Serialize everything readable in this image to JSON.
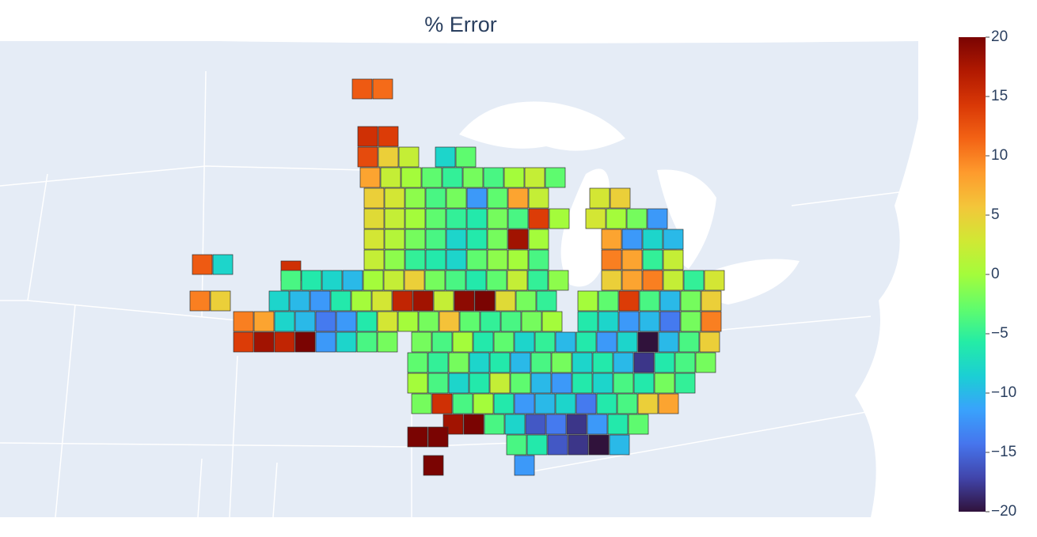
{
  "chart_data": {
    "type": "choropleth",
    "title": "% Error",
    "colorscale": [
      "#30123b",
      "#4145ab",
      "#4675ed",
      "#39a2fc",
      "#1bcfd4",
      "#24eca6",
      "#61fc6c",
      "#a4fc3b",
      "#d1e834",
      "#f3c63a",
      "#fe9b2d",
      "#f36315",
      "#d93806",
      "#b11901",
      "#7a0402"
    ],
    "zlim": [
      -20,
      20
    ],
    "zticks": [
      20,
      15,
      10,
      5,
      0,
      {
        "value": -5,
        "label": "−5"
      },
      {
        "value": -10,
        "label": "−10"
      },
      {
        "value": -15,
        "label": "−15"
      },
      {
        "value": -20,
        "label": "−20"
      }
    ],
    "values": [
      12,
      11,
      15,
      14,
      13,
      5,
      2,
      -8,
      -3,
      8,
      2,
      0,
      -3,
      -5,
      -2,
      -4,
      0,
      2,
      -3,
      5,
      3,
      -1,
      -4,
      -2,
      -12,
      -3,
      8,
      2,
      3,
      5,
      4,
      2,
      0,
      -3,
      -5,
      -6,
      -2,
      -4,
      14,
      0,
      3,
      0,
      -2,
      -12,
      3,
      1,
      -2,
      -4,
      -8,
      -6,
      -2,
      18,
      0,
      8,
      -12,
      -8,
      -10,
      2,
      -1,
      -5,
      -6,
      -8,
      -3,
      -1,
      0,
      -4,
      10,
      8,
      -5,
      2,
      12,
      -8,
      15,
      -4,
      -6,
      -8,
      -10,
      0,
      2,
      5,
      -2,
      -4,
      -6,
      -3,
      2,
      -5,
      -1,
      5,
      8,
      10,
      2,
      -5,
      3,
      10,
      5,
      -8,
      -10,
      -12,
      -6,
      0,
      3,
      16,
      18,
      2,
      19,
      20,
      4,
      -2,
      -5,
      0,
      -3,
      14,
      -4,
      -10,
      -2,
      5,
      10,
      8,
      -8,
      -10,
      -14,
      -12,
      -6,
      3,
      0,
      -2,
      6,
      -3,
      -5,
      -4,
      -2,
      0,
      -6,
      -8,
      -12,
      -10,
      -14,
      -2,
      10,
      14,
      18,
      16,
      20,
      -12,
      -8,
      -4,
      -2,
      -2,
      -4,
      0,
      -6,
      -3,
      -8,
      -5,
      -10,
      -6,
      -12,
      -8,
      -20,
      -10,
      -4,
      5,
      -3,
      -5,
      -2,
      -8,
      -6,
      -10,
      -4,
      -2,
      -8,
      -6,
      -10,
      -18,
      -6,
      -4,
      -2,
      0,
      -4,
      -8,
      -6,
      2,
      -3,
      -10,
      -12,
      -6,
      -8,
      -4,
      -6,
      -2,
      -5,
      -2,
      15,
      -4,
      0,
      -6,
      -12,
      -10,
      -8,
      -14,
      -6,
      -4,
      5,
      8,
      18,
      20,
      -4,
      -8,
      -16,
      -14,
      -18,
      -12,
      -6,
      -3,
      -4,
      -6,
      -16,
      -18,
      -20,
      -10,
      20,
      20,
      20,
      -12
    ]
  }
}
